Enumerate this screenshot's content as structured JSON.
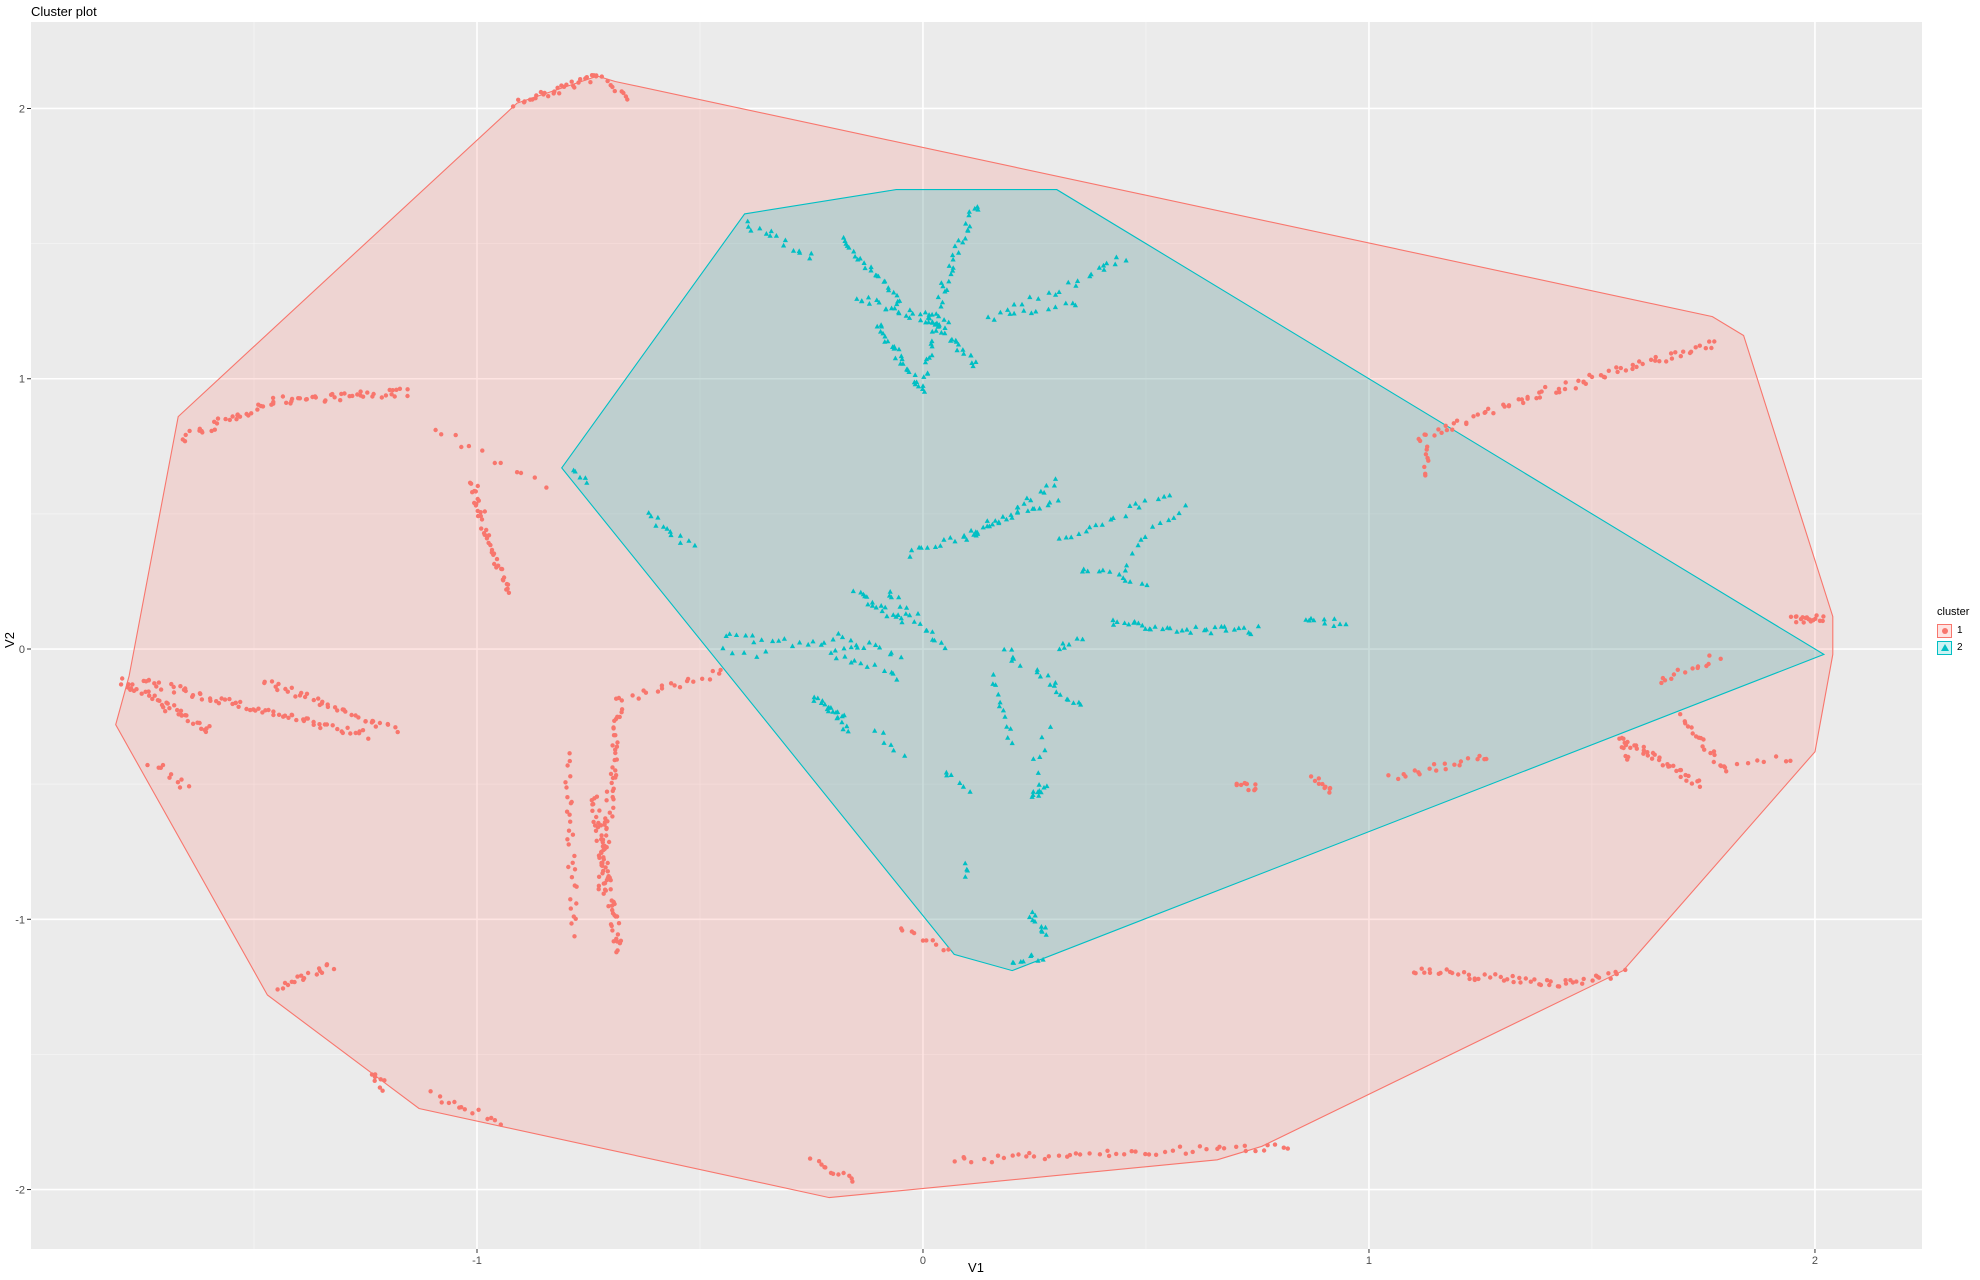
{
  "title": "Cluster plot",
  "chart_data": {
    "type": "scatter",
    "title": "Cluster plot",
    "xlabel": "V1",
    "ylabel": "V2",
    "xlim": [
      -2.0,
      2.24
    ],
    "ylim": [
      -2.22,
      2.32
    ],
    "x_ticks": [
      -1,
      0,
      1,
      2
    ],
    "y_ticks": [
      -2,
      -1,
      0,
      1,
      2
    ],
    "x_tick_labels": [
      "-1",
      "0",
      "1",
      "2"
    ],
    "y_tick_labels": [
      "-2",
      "-1",
      "0",
      "1",
      "2"
    ],
    "grid": true,
    "legend": {
      "title": "cluster",
      "position": "right",
      "entries": [
        "1",
        "2"
      ]
    },
    "colors": {
      "1": "#F8766D",
      "2": "#00BFC4"
    },
    "background": "#EBEBEB",
    "series": [
      {
        "name": "1",
        "shape": "circle",
        "hull": [
          [
            -1.81,
            -0.28
          ],
          [
            -1.78,
            -0.1
          ],
          [
            -1.67,
            0.86
          ],
          [
            -0.91,
            2.02
          ],
          [
            -0.73,
            2.12
          ],
          [
            -0.69,
            2.1
          ],
          [
            1.77,
            1.23
          ],
          [
            1.84,
            1.16
          ],
          [
            2.04,
            0.12
          ],
          [
            2.04,
            -0.02
          ],
          [
            2.0,
            -0.38
          ],
          [
            1.57,
            -1.19
          ],
          [
            0.76,
            -1.84
          ],
          [
            0.66,
            -1.89
          ],
          [
            -0.21,
            -2.03
          ],
          [
            -1.13,
            -1.7
          ],
          [
            -1.47,
            -1.28
          ]
        ],
        "segments": [
          {
            "from": [
              -0.91,
              2.02
            ],
            "to": [
              -0.73,
              2.12
            ],
            "n": 30
          },
          {
            "from": [
              -0.73,
              2.12
            ],
            "to": [
              -0.66,
              2.03
            ],
            "n": 10
          },
          {
            "from": [
              -1.66,
              0.78
            ],
            "to": [
              -1.45,
              0.92
            ],
            "n": 30
          },
          {
            "from": [
              -1.45,
              0.92
            ],
            "to": [
              -1.15,
              0.95
            ],
            "n": 40
          },
          {
            "from": [
              -1.01,
              0.62
            ],
            "to": [
              -0.98,
              0.42
            ],
            "n": 22
          },
          {
            "from": [
              -0.98,
              0.42
            ],
            "to": [
              -0.93,
              0.2
            ],
            "n": 22
          },
          {
            "from": [
              -1.1,
              0.82
            ],
            "to": [
              -0.85,
              0.6
            ],
            "n": 12
          },
          {
            "from": [
              -1.8,
              -0.12
            ],
            "to": [
              -1.6,
              -0.3
            ],
            "n": 40
          },
          {
            "from": [
              -1.75,
              -0.12
            ],
            "to": [
              -1.25,
              -0.32
            ],
            "n": 70
          },
          {
            "from": [
              -1.48,
              -0.12
            ],
            "to": [
              -1.18,
              -0.3
            ],
            "n": 40
          },
          {
            "from": [
              -1.73,
              -0.42
            ],
            "to": [
              -1.65,
              -0.52
            ],
            "n": 10
          },
          {
            "from": [
              -0.45,
              -0.08
            ],
            "to": [
              -0.65,
              -0.18
            ],
            "n": 18
          },
          {
            "from": [
              -0.68,
              -0.18
            ],
            "to": [
              -0.72,
              -0.9
            ],
            "n": 60
          },
          {
            "from": [
              -0.74,
              -0.55
            ],
            "to": [
              -0.68,
              -1.12
            ],
            "n": 60
          },
          {
            "from": [
              -0.8,
              -0.4
            ],
            "to": [
              -0.78,
              -1.05
            ],
            "n": 30
          },
          {
            "from": [
              -1.45,
              -1.25
            ],
            "to": [
              -1.32,
              -1.17
            ],
            "n": 18
          },
          {
            "from": [
              -1.23,
              -1.57
            ],
            "to": [
              -1.21,
              -1.62
            ],
            "n": 8
          },
          {
            "from": [
              -1.1,
              -1.65
            ],
            "to": [
              -0.95,
              -1.75
            ],
            "n": 14
          },
          {
            "from": [
              -0.25,
              -1.88
            ],
            "to": [
              -0.15,
              -1.98
            ],
            "n": 12
          },
          {
            "from": [
              0.07,
              -1.89
            ],
            "to": [
              0.82,
              -1.84
            ],
            "n": 50
          },
          {
            "from": [
              -0.05,
              -1.02
            ],
            "to": [
              0.05,
              -1.12
            ],
            "n": 10
          },
          {
            "from": [
              1.1,
              -1.19
            ],
            "to": [
              1.45,
              -1.24
            ],
            "n": 40
          },
          {
            "from": [
              1.45,
              -1.24
            ],
            "to": [
              1.57,
              -1.19
            ],
            "n": 14
          },
          {
            "from": [
              1.12,
              0.78
            ],
            "to": [
              1.35,
              0.93
            ],
            "n": 25
          },
          {
            "from": [
              1.35,
              0.93
            ],
            "to": [
              1.78,
              1.13
            ],
            "n": 50
          },
          {
            "from": [
              1.12,
              0.8
            ],
            "to": [
              1.13,
              0.63
            ],
            "n": 10
          },
          {
            "from": [
              1.95,
              0.11
            ],
            "to": [
              2.02,
              0.11
            ],
            "n": 18
          },
          {
            "from": [
              1.56,
              -0.32
            ],
            "to": [
              1.74,
              -0.5
            ],
            "n": 35
          },
          {
            "from": [
              1.7,
              -0.25
            ],
            "to": [
              1.8,
              -0.45
            ],
            "n": 20
          },
          {
            "from": [
              1.65,
              -0.12
            ],
            "to": [
              1.78,
              -0.03
            ],
            "n": 14
          },
          {
            "from": [
              1.95,
              -0.4
            ],
            "to": [
              1.8,
              -0.43
            ],
            "n": 8
          },
          {
            "from": [
              0.7,
              -0.5
            ],
            "to": [
              0.75,
              -0.52
            ],
            "n": 10
          },
          {
            "from": [
              0.87,
              -0.48
            ],
            "to": [
              0.92,
              -0.52
            ],
            "n": 10
          },
          {
            "from": [
              1.05,
              -0.47
            ],
            "to": [
              1.27,
              -0.4
            ],
            "n": 20
          },
          {
            "from": [
              1.57,
              -0.36
            ],
            "to": [
              1.58,
              -0.4
            ],
            "n": 6
          }
        ]
      },
      {
        "name": "2",
        "shape": "triangle",
        "hull": [
          [
            -0.81,
            0.67
          ],
          [
            -0.4,
            1.61
          ],
          [
            -0.06,
            1.7
          ],
          [
            0.3,
            1.7
          ],
          [
            2.02,
            -0.02
          ],
          [
            0.2,
            -1.19
          ],
          [
            0.07,
            -1.13
          ]
        ],
        "segments": [
          {
            "from": [
              -0.4,
              1.58
            ],
            "to": [
              -0.25,
              1.45
            ],
            "n": 15
          },
          {
            "from": [
              -0.18,
              1.52
            ],
            "to": [
              -0.05,
              1.28
            ],
            "n": 25
          },
          {
            "from": [
              -0.15,
              1.3
            ],
            "to": [
              0.05,
              1.2
            ],
            "n": 25
          },
          {
            "from": [
              -0.1,
              1.2
            ],
            "to": [
              0.0,
              0.95
            ],
            "n": 30
          },
          {
            "from": [
              0.0,
              1.25
            ],
            "to": [
              0.12,
              1.05
            ],
            "n": 25
          },
          {
            "from": [
              0.12,
              1.65
            ],
            "to": [
              0.05,
              1.35
            ],
            "n": 22
          },
          {
            "from": [
              0.05,
              1.35
            ],
            "to": [
              0.0,
              1.0
            ],
            "n": 22
          },
          {
            "from": [
              0.18,
              1.25
            ],
            "to": [
              0.4,
              1.4
            ],
            "n": 15
          },
          {
            "from": [
              0.4,
              1.4
            ],
            "to": [
              0.45,
              1.45
            ],
            "n": 6
          },
          {
            "from": [
              0.15,
              1.22
            ],
            "to": [
              0.35,
              1.28
            ],
            "n": 12
          },
          {
            "from": [
              -0.78,
              0.65
            ],
            "to": [
              -0.75,
              0.62
            ],
            "n": 5
          },
          {
            "from": [
              -0.62,
              0.5
            ],
            "to": [
              -0.52,
              0.38
            ],
            "n": 12
          },
          {
            "from": [
              -0.03,
              0.35
            ],
            "to": [
              0.3,
              0.55
            ],
            "n": 30
          },
          {
            "from": [
              0.1,
              0.4
            ],
            "to": [
              0.3,
              0.62
            ],
            "n": 20
          },
          {
            "from": [
              0.3,
              0.4
            ],
            "to": [
              0.55,
              0.58
            ],
            "n": 18
          },
          {
            "from": [
              0.35,
              0.3
            ],
            "to": [
              0.5,
              0.25
            ],
            "n": 12
          },
          {
            "from": [
              0.45,
              0.3
            ],
            "to": [
              0.5,
              0.42
            ],
            "n": 6
          },
          {
            "from": [
              0.52,
              0.45
            ],
            "to": [
              0.58,
              0.52
            ],
            "n": 6
          },
          {
            "from": [
              -0.15,
              0.22
            ],
            "to": [
              -0.05,
              0.1
            ],
            "n": 18
          },
          {
            "from": [
              -0.08,
              0.22
            ],
            "to": [
              0.05,
              0.0
            ],
            "n": 18
          },
          {
            "from": [
              -0.45,
              0.05
            ],
            "to": [
              -0.15,
              0.0
            ],
            "n": 20
          },
          {
            "from": [
              -0.45,
              0.0
            ],
            "to": [
              -0.35,
              -0.02
            ],
            "n": 5
          },
          {
            "from": [
              -0.2,
              0.05
            ],
            "to": [
              -0.05,
              -0.02
            ],
            "n": 12
          },
          {
            "from": [
              -0.2,
              -0.02
            ],
            "to": [
              -0.05,
              -0.1
            ],
            "n": 12
          },
          {
            "from": [
              -0.05,
              -0.4
            ],
            "to": [
              -0.1,
              -0.3
            ],
            "n": 6
          },
          {
            "from": [
              0.05,
              -0.45
            ],
            "to": [
              0.1,
              -0.52
            ],
            "n": 6
          },
          {
            "from": [
              0.15,
              -0.1
            ],
            "to": [
              0.2,
              -0.35
            ],
            "n": 12
          },
          {
            "from": [
              0.19,
              0.0
            ],
            "to": [
              0.21,
              -0.05
            ],
            "n": 6
          },
          {
            "from": [
              0.25,
              -0.08
            ],
            "to": [
              0.35,
              -0.22
            ],
            "n": 14
          },
          {
            "from": [
              0.3,
              0.0
            ],
            "to": [
              0.35,
              0.05
            ],
            "n": 6
          },
          {
            "from": [
              0.25,
              -0.45
            ],
            "to": [
              0.28,
              -0.3
            ],
            "n": 6
          },
          {
            "from": [
              -0.25,
              -0.18
            ],
            "to": [
              -0.18,
              -0.25
            ],
            "n": 12
          },
          {
            "from": [
              -0.22,
              -0.22
            ],
            "to": [
              -0.17,
              -0.3
            ],
            "n": 10
          },
          {
            "from": [
              0.27,
              -0.51
            ],
            "to": [
              0.25,
              -0.55
            ],
            "n": 10
          },
          {
            "from": [
              0.42,
              0.1
            ],
            "to": [
              0.5,
              0.08
            ],
            "n": 10
          },
          {
            "from": [
              0.5,
              0.08
            ],
            "to": [
              0.65,
              0.07
            ],
            "n": 14
          },
          {
            "from": [
              0.65,
              0.07
            ],
            "to": [
              0.75,
              0.07
            ],
            "n": 10
          },
          {
            "from": [
              0.85,
              0.1
            ],
            "to": [
              0.95,
              0.1
            ],
            "n": 10
          },
          {
            "from": [
              0.1,
              -0.78
            ],
            "to": [
              0.1,
              -0.85
            ],
            "n": 4
          },
          {
            "from": [
              0.24,
              -0.98
            ],
            "to": [
              0.28,
              -1.05
            ],
            "n": 10
          },
          {
            "from": [
              0.2,
              -1.16
            ],
            "to": [
              0.27,
              -1.14
            ],
            "n": 8
          }
        ]
      }
    ]
  }
}
